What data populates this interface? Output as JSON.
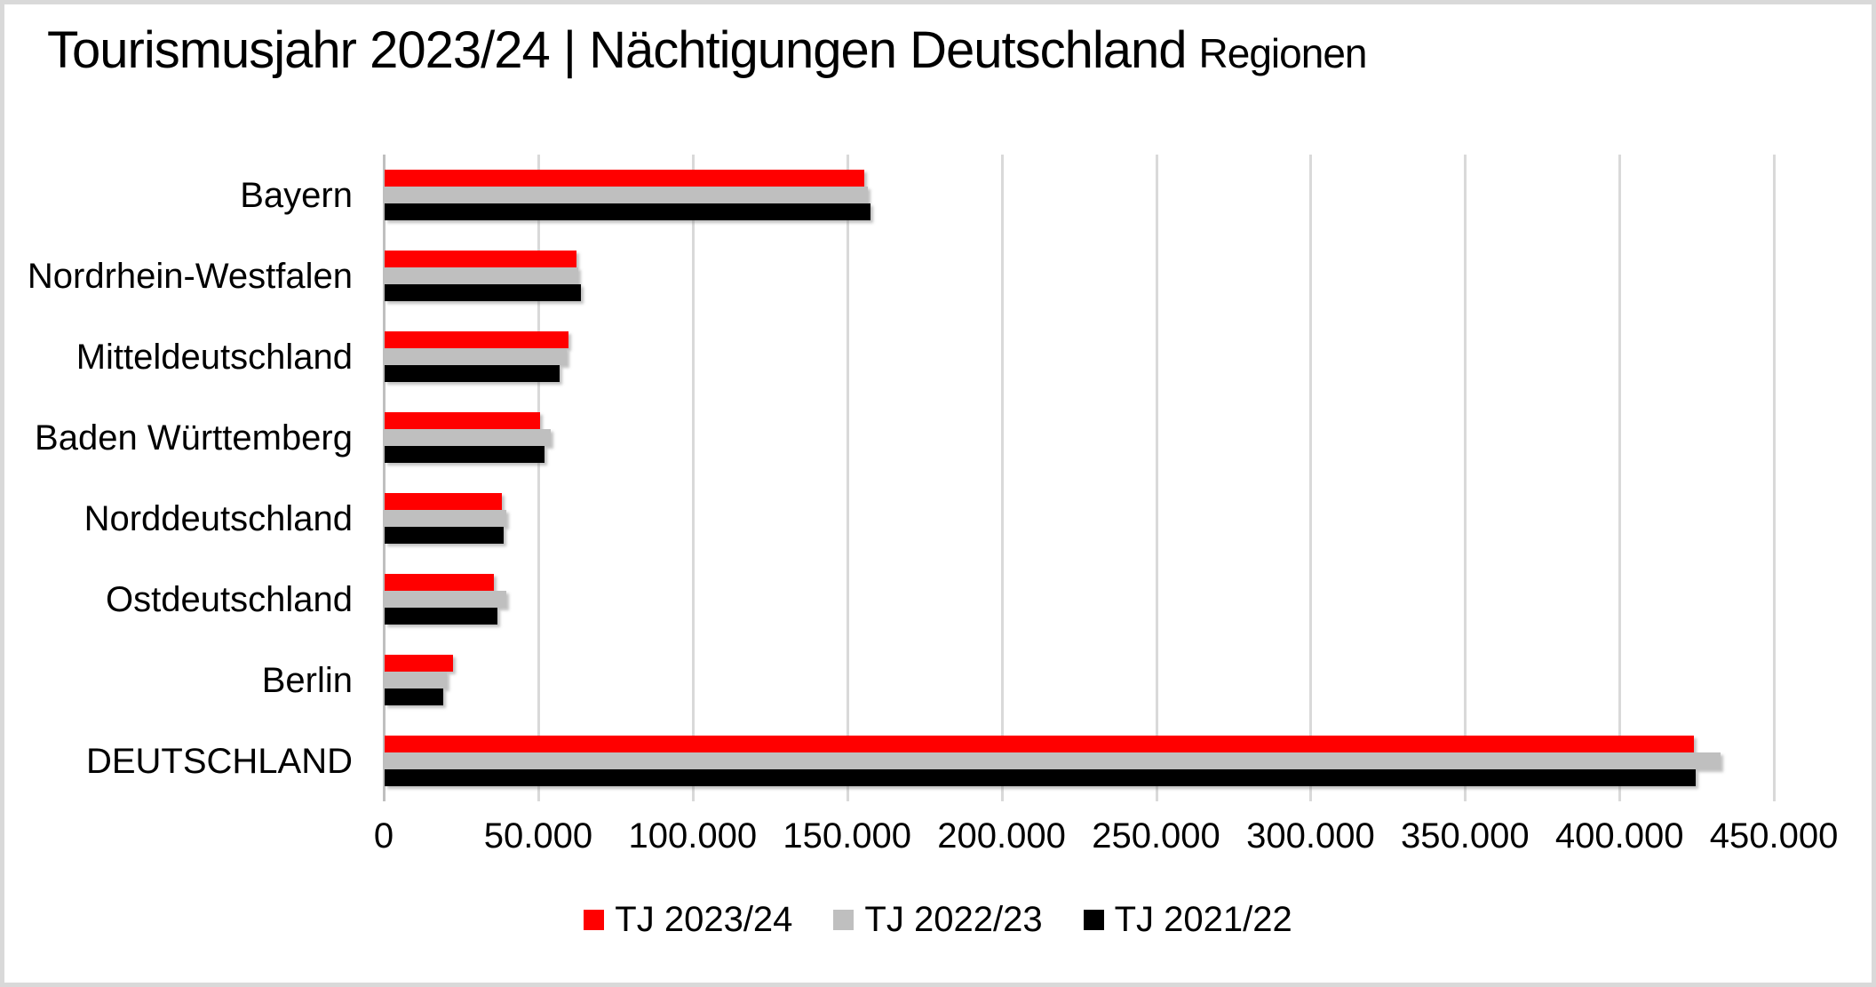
{
  "title": {
    "main": "Tourismusjahr 2023/24 | Nächtigungen Deutschland",
    "suffix": "Regionen"
  },
  "colors": {
    "series_red": "#FF0000",
    "series_gray": "#BFBFBF",
    "series_black": "#000000",
    "gridline": "#D9D9D9",
    "axis_line": "#BFBFBF",
    "frame_border": "#D9D9D9",
    "background": "#FFFFFF",
    "text": "#000000"
  },
  "chart_data": {
    "type": "bar",
    "orientation": "horizontal",
    "title": "Tourismusjahr 2023/24 | Nächtigungen Deutschland Regionen",
    "categories": [
      "Bayern",
      "Nordrhein-Westfalen",
      "Mitteldeutschland",
      "Baden Württemberg",
      "Norddeutschland",
      "Ostdeutschland",
      "Berlin",
      "DEUTSCHLAND"
    ],
    "series": [
      {
        "name": "TJ 2023/24",
        "color": "#FF0000",
        "values": [
          155300,
          62000,
          59400,
          50200,
          37900,
          35500,
          22100,
          423900
        ]
      },
      {
        "name": "TJ 2022/23",
        "color": "#BFBFBF",
        "values": [
          156400,
          62700,
          58900,
          53700,
          39300,
          39300,
          20000,
          432500
        ]
      },
      {
        "name": "TJ 2021/22",
        "color": "#000000",
        "values": [
          157300,
          63500,
          56600,
          51700,
          38400,
          36400,
          18900,
          424400
        ]
      }
    ],
    "xlabel": "",
    "ylabel": "",
    "x_axis": {
      "min": 0,
      "max": 450000,
      "tick_step": 50000,
      "tick_labels": [
        "0",
        "50.000",
        "100.000",
        "150.000",
        "200.000",
        "250.000",
        "300.000",
        "350.000",
        "400.000",
        "450.000"
      ]
    },
    "grid": "vertical",
    "legend_position": "bottom"
  }
}
